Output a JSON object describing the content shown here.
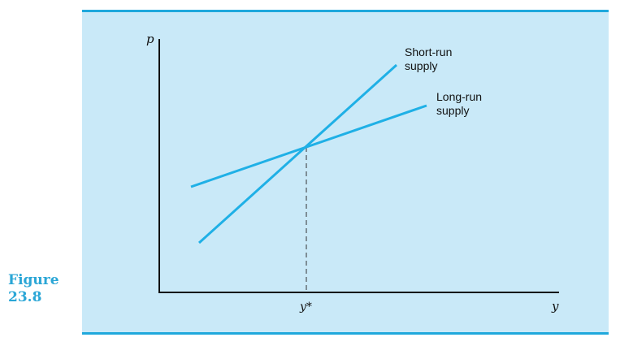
{
  "caption": {
    "line1": "Figure",
    "line2": "23.8"
  },
  "diagram": {
    "colors": {
      "panel_background": "#c9e9f8",
      "rule": "#1fa8dc",
      "curve": "#1fb0e6",
      "axis": "#111111"
    },
    "axes": {
      "x_label": "y",
      "y_label": "p",
      "x_marker_label": "y*"
    },
    "curves": [
      {
        "id": "short-run",
        "label_line1": "Short-run",
        "label_line2": "supply"
      },
      {
        "id": "long-run",
        "label_line1": "Long-run",
        "label_line2": "supply"
      }
    ]
  }
}
